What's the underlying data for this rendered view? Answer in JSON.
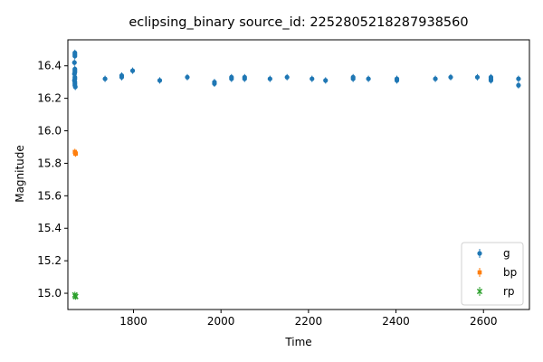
{
  "chart_data": {
    "type": "scatter",
    "title": "eclipsing_binary source_id: 2252805218287938560",
    "xlabel": "Time",
    "ylabel": "Magnitude",
    "xlim": [
      1650,
      2705
    ],
    "ylim": [
      14.9,
      16.56
    ],
    "xticks": [
      1800,
      2000,
      2200,
      2400,
      2600
    ],
    "yticks": [
      15.0,
      15.2,
      15.4,
      15.6,
      15.8,
      16.0,
      16.2,
      16.4
    ],
    "grid": false,
    "legend_position": "bottom-right",
    "series": [
      {
        "name": "g",
        "color": "#1f77b4",
        "marker": "circle",
        "points": [
          [
            1666,
            16.47
          ],
          [
            1666,
            16.46
          ],
          [
            1666,
            16.48
          ],
          [
            1665,
            16.42
          ],
          [
            1666,
            16.38
          ],
          [
            1666,
            16.37
          ],
          [
            1666,
            16.36
          ],
          [
            1665,
            16.35
          ],
          [
            1666,
            16.33
          ],
          [
            1666,
            16.32
          ],
          [
            1665,
            16.31
          ],
          [
            1666,
            16.3
          ],
          [
            1666,
            16.29
          ],
          [
            1666,
            16.28
          ],
          [
            1667,
            16.27
          ],
          [
            1735,
            16.32
          ],
          [
            1773,
            16.33
          ],
          [
            1773,
            16.34
          ],
          [
            1798,
            16.37
          ],
          [
            1860,
            16.31
          ],
          [
            1923,
            16.33
          ],
          [
            1985,
            16.29
          ],
          [
            1985,
            16.3
          ],
          [
            2024,
            16.32
          ],
          [
            2024,
            16.33
          ],
          [
            2054,
            16.32
          ],
          [
            2054,
            16.33
          ],
          [
            2112,
            16.32
          ],
          [
            2151,
            16.33
          ],
          [
            2208,
            16.32
          ],
          [
            2239,
            16.31
          ],
          [
            2302,
            16.32
          ],
          [
            2302,
            16.33
          ],
          [
            2337,
            16.32
          ],
          [
            2402,
            16.31
          ],
          [
            2402,
            16.32
          ],
          [
            2490,
            16.32
          ],
          [
            2525,
            16.33
          ],
          [
            2586,
            16.33
          ],
          [
            2617,
            16.33
          ],
          [
            2617,
            16.32
          ],
          [
            2617,
            16.31
          ],
          [
            2680,
            16.32
          ],
          [
            2680,
            16.28
          ]
        ]
      },
      {
        "name": "bp",
        "color": "#ff7f0e",
        "marker": "square",
        "points": [
          [
            1666,
            15.87
          ],
          [
            1667,
            15.86
          ],
          [
            1668,
            15.86
          ]
        ]
      },
      {
        "name": "rp",
        "color": "#2ca02c",
        "marker": "x",
        "points": [
          [
            1666,
            14.99
          ],
          [
            1667,
            14.98
          ],
          [
            1668,
            14.98
          ]
        ]
      }
    ]
  }
}
